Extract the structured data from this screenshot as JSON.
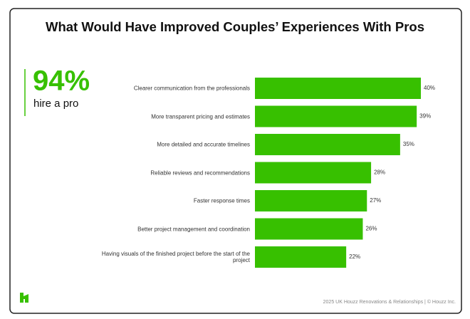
{
  "chart_data": {
    "type": "bar",
    "orientation": "horizontal",
    "title": "What Would Have Improved Couples’ Experiences With Pros",
    "callout": {
      "figure": "94%",
      "text": "hire a pro"
    },
    "categories": [
      "Clearer communication from the professionals",
      "More transparent pricing and estimates",
      "More detailed and accurate timelines",
      "Reliable reviews and recommendations",
      "Faster response times",
      "Better project management and coordination",
      "Having visuals of the finished project before the start of the project"
    ],
    "values": [
      40,
      39,
      35,
      28,
      27,
      26,
      22
    ],
    "value_labels": [
      "40%",
      "39%",
      "35%",
      "28%",
      "27%",
      "26%",
      "22%"
    ],
    "color": "#37c000",
    "source": "2025 UK Houzz Renovations & Relationships | © Houzz Inc."
  }
}
